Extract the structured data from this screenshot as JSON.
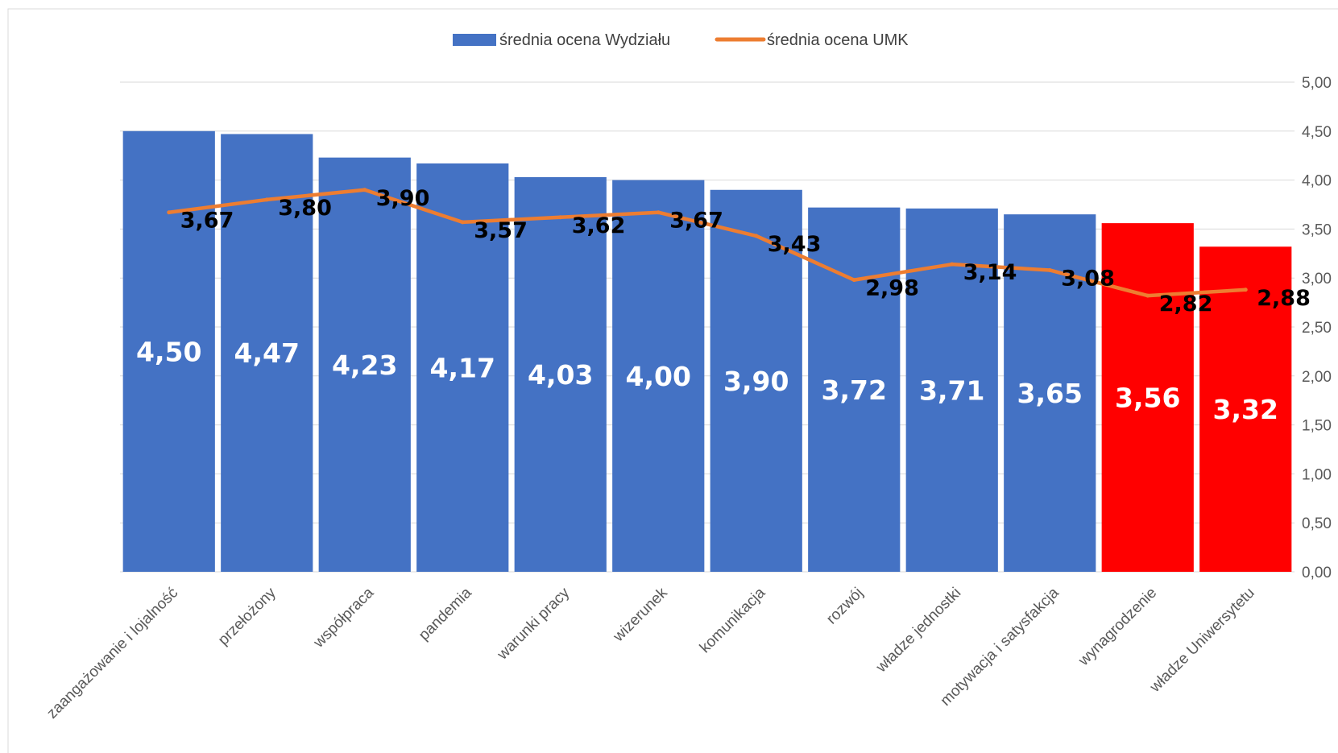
{
  "chart_data": {
    "type": "bar",
    "categories": [
      "zaangażowanie i lojalność",
      "przełożony",
      "współpraca",
      "pandemia",
      "warunki pracy",
      "wizerunek",
      "komunikacja",
      "rozwój",
      "władze jednostki",
      "motywacja i satysfakcja",
      "wynagrodzenie",
      "władze Uniwersytetu"
    ],
    "series": [
      {
        "name": "średnia ocena Wydziału",
        "kind": "bar",
        "values": [
          4.5,
          4.47,
          4.23,
          4.17,
          4.03,
          4.0,
          3.9,
          3.72,
          3.71,
          3.65,
          3.56,
          3.32
        ],
        "labels": [
          "4,50",
          "4,47",
          "4,23",
          "4,17",
          "4,03",
          "4,00",
          "3,90",
          "3,72",
          "3,71",
          "3,65",
          "3,56",
          "3,32"
        ],
        "colors": [
          "#4472c4",
          "#4472c4",
          "#4472c4",
          "#4472c4",
          "#4472c4",
          "#4472c4",
          "#4472c4",
          "#4472c4",
          "#4472c4",
          "#4472c4",
          "#ff0000",
          "#ff0000"
        ]
      },
      {
        "name": "średnia ocena UMK",
        "kind": "line",
        "values": [
          3.67,
          3.8,
          3.9,
          3.57,
          3.62,
          3.67,
          3.43,
          2.98,
          3.14,
          3.08,
          2.82,
          2.88
        ],
        "labels": [
          "3,67",
          "3,80",
          "3,90",
          "3,57",
          "3,62",
          "3,67",
          "3,43",
          "2,98",
          "3,14",
          "3,08",
          "2,82",
          "2,88"
        ],
        "color": "#ed7d31"
      }
    ],
    "y_ticks": [
      "0,00",
      "0,50",
      "1,00",
      "1,50",
      "2,00",
      "2,50",
      "3,00",
      "3,50",
      "4,00",
      "4,50",
      "5,00"
    ],
    "ylim": [
      0,
      5
    ],
    "y_axis_side": "right",
    "grid": true,
    "legend_position": "top-center",
    "bar_color": "#4472c4",
    "highlight_color": "#ff0000",
    "line_color": "#ed7d31"
  }
}
